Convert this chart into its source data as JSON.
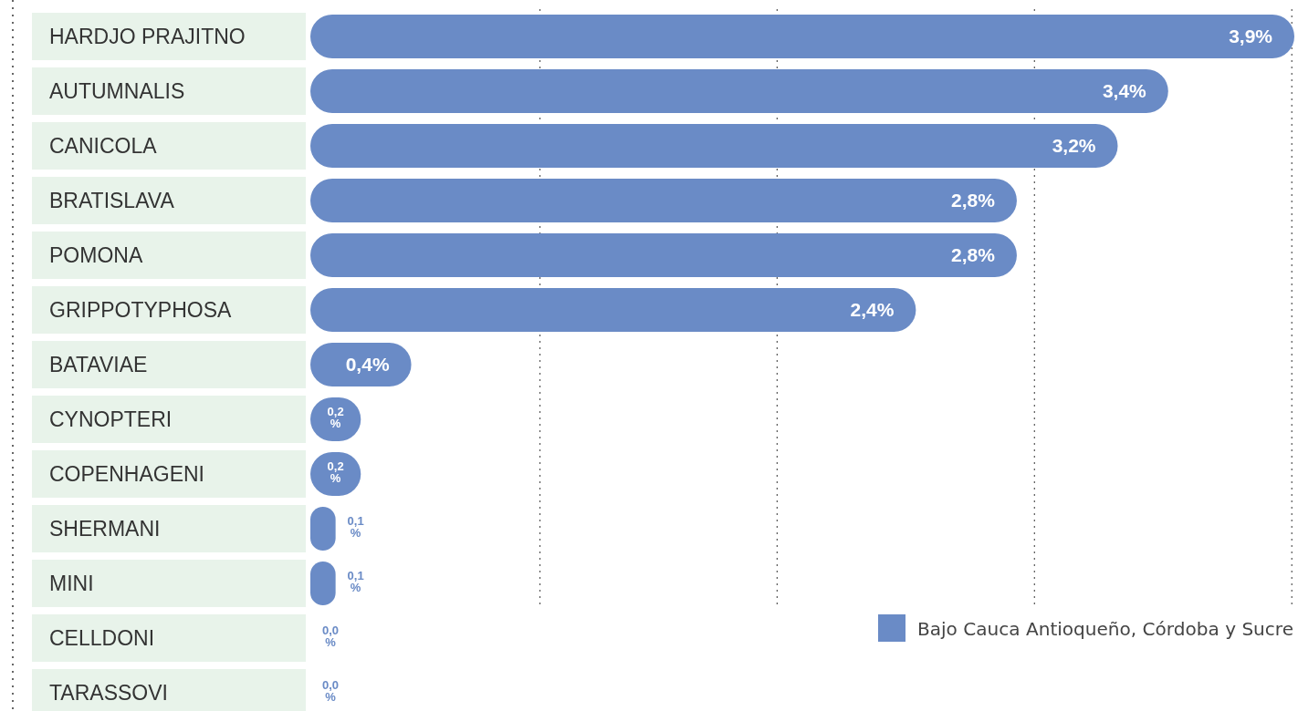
{
  "chart_data": {
    "type": "bar",
    "orientation": "horizontal",
    "categories": [
      "HARDJO PRAJITNO",
      "AUTUMNALIS",
      "CANICOLA",
      "BRATISLAVA",
      "POMONA",
      "GRIPPOTYPHOSA",
      "BATAVIAE",
      "CYNOPTERI",
      "COPENHAGENI",
      "SHERMANI",
      "MINI",
      "CELLDONI",
      "TARASSOVI"
    ],
    "series": [
      {
        "name": "Bajo Cauca Antioqueño, Córdoba y Sucre",
        "color": "#6a8bc6",
        "values": [
          3.9,
          3.4,
          3.2,
          2.8,
          2.8,
          2.4,
          0.4,
          0.2,
          0.2,
          0.1,
          0.1,
          0.0,
          0.0
        ],
        "value_labels": [
          "3,9%",
          "3,4%",
          "3,2%",
          "2,8%",
          "2,8%",
          "2,4%",
          "0,4%",
          "0,2%",
          "0,2%",
          "0,1%",
          "0,1%",
          "0,0%",
          "0,0%"
        ]
      }
    ],
    "xlim": [
      0,
      3.9
    ],
    "xticks": [
      {
        "value": 0.91,
        "label": null
      },
      {
        "value": 1.85,
        "label": null
      },
      {
        "value": 2.87,
        "label": null
      },
      {
        "value": 3.89,
        "label": null
      }
    ],
    "grid": "x",
    "legend": "bottom right",
    "tick_labels": "y"
  }
}
